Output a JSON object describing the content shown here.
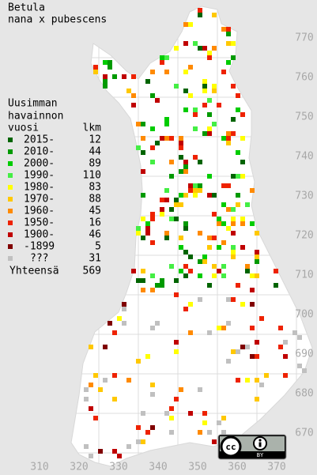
{
  "title": [
    "Betula",
    "nana x pubescens"
  ],
  "legend": {
    "heading": [
      "Uusimman",
      "havainnon",
      "vuosi"
    ],
    "count_heading": "lkm",
    "rows": [
      {
        "label": "2015-",
        "count": 12,
        "color": "#006400"
      },
      {
        "label": "2010-",
        "count": 44,
        "color": "#009a00"
      },
      {
        "label": "2000-",
        "count": 89,
        "color": "#00cc00"
      },
      {
        "label": "1990-",
        "count": 110,
        "color": "#44ee44"
      },
      {
        "label": "1980-",
        "count": 83,
        "color": "#ffff00"
      },
      {
        "label": "1970-",
        "count": 88,
        "color": "#ffc800"
      },
      {
        "label": "1960-",
        "count": 45,
        "color": "#ff8a00"
      },
      {
        "label": "1950-",
        "count": 16,
        "color": "#ee2200"
      },
      {
        "label": "1900-",
        "count": 46,
        "color": "#c00000"
      },
      {
        "label": "-1899",
        "count": 5,
        "color": "#800000"
      },
      {
        "label": "???",
        "count": 31,
        "color": "#c0c0c0"
      }
    ],
    "total_label": "Yhteensä",
    "total": 569
  },
  "axes": {
    "x_labels": [
      310,
      320,
      330,
      340,
      350,
      360,
      370
    ],
    "y_labels": [
      770,
      760,
      750,
      740,
      730,
      720,
      710,
      700,
      690,
      680,
      670
    ]
  },
  "license": {
    "icon": "cc",
    "label": "BY"
  }
}
